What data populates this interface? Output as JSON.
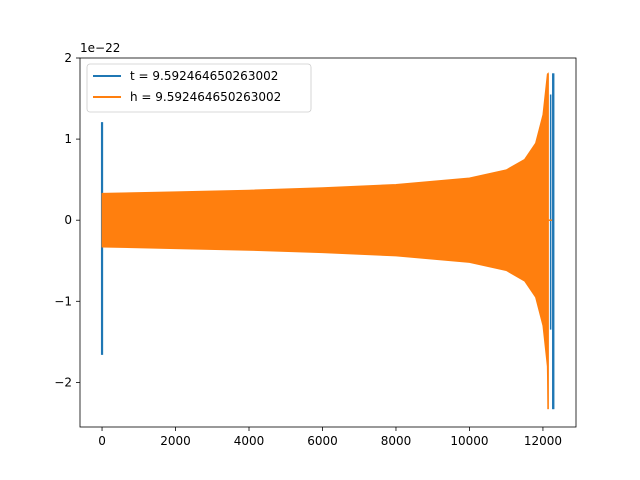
{
  "chart_data": {
    "type": "line",
    "title": "",
    "xlabel": "",
    "ylabel": "",
    "offset_label": "1e−22",
    "xlim": [
      -600,
      12900
    ],
    "ylim": [
      -2.55,
      2.0
    ],
    "x_ticks": [
      0,
      2000,
      4000,
      6000,
      8000,
      10000,
      12000
    ],
    "x_tick_labels": [
      "0",
      "2000",
      "4000",
      "6000",
      "8000",
      "10000",
      "12000"
    ],
    "y_ticks": [
      -2,
      -1,
      0,
      1,
      2
    ],
    "y_tick_labels": [
      "−2",
      "−1",
      "0",
      "1",
      "2"
    ],
    "grid": false,
    "legend_position": "upper-left",
    "series": [
      {
        "name": "t = 9.592464650263002",
        "color": "#1f77b4",
        "spikes": [
          {
            "x": 0,
            "y_min": -1.66,
            "y_max": 1.21
          },
          {
            "x": 12280,
            "y_min": -2.33,
            "y_max": 1.81
          }
        ],
        "mid_dips": [
          {
            "x": 12210,
            "y_min": -1.35,
            "y_max": 1.55
          }
        ]
      },
      {
        "name": "h = 9.592464650263002",
        "color": "#ff7f0e",
        "envelope": [
          {
            "x": 0,
            "amp": 0.33
          },
          {
            "x": 2000,
            "amp": 0.35
          },
          {
            "x": 4000,
            "amp": 0.37
          },
          {
            "x": 6000,
            "amp": 0.4
          },
          {
            "x": 8000,
            "amp": 0.44
          },
          {
            "x": 10000,
            "amp": 0.52
          },
          {
            "x": 11000,
            "amp": 0.62
          },
          {
            "x": 11500,
            "amp": 0.75
          },
          {
            "x": 11800,
            "amp": 0.95
          },
          {
            "x": 12000,
            "amp": 1.3
          },
          {
            "x": 12120,
            "amp": 1.8
          }
        ],
        "end_peak": {
          "x": 12140,
          "y_min": -2.33,
          "y_max": 1.81
        },
        "tail": {
          "x_start": 12150,
          "x_end": 12300,
          "y": 0.0
        }
      }
    ]
  }
}
